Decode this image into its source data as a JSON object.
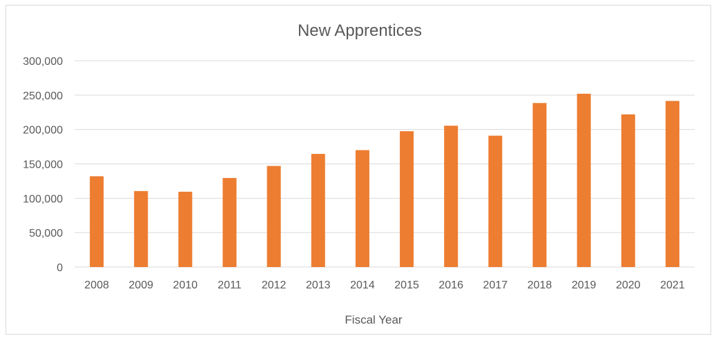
{
  "chart_data": {
    "type": "bar",
    "title": "New Apprentices",
    "xlabel": "Fiscal Year",
    "ylabel": "",
    "categories": [
      "2008",
      "2009",
      "2010",
      "2011",
      "2012",
      "2013",
      "2014",
      "2015",
      "2016",
      "2017",
      "2018",
      "2019",
      "2020",
      "2021"
    ],
    "values": [
      132000,
      110500,
      109500,
      129500,
      147000,
      164500,
      170000,
      197500,
      205500,
      191000,
      238500,
      252000,
      222000,
      241500
    ],
    "ylim": [
      0,
      300000
    ],
    "yticks": [
      0,
      50000,
      100000,
      150000,
      200000,
      250000,
      300000
    ],
    "ytick_labels": [
      "0",
      "50,000",
      "100,000",
      "150,000",
      "200,000",
      "250,000",
      "300,000"
    ],
    "grid": true,
    "legend": "none",
    "bar_color": "#ED7D31"
  }
}
